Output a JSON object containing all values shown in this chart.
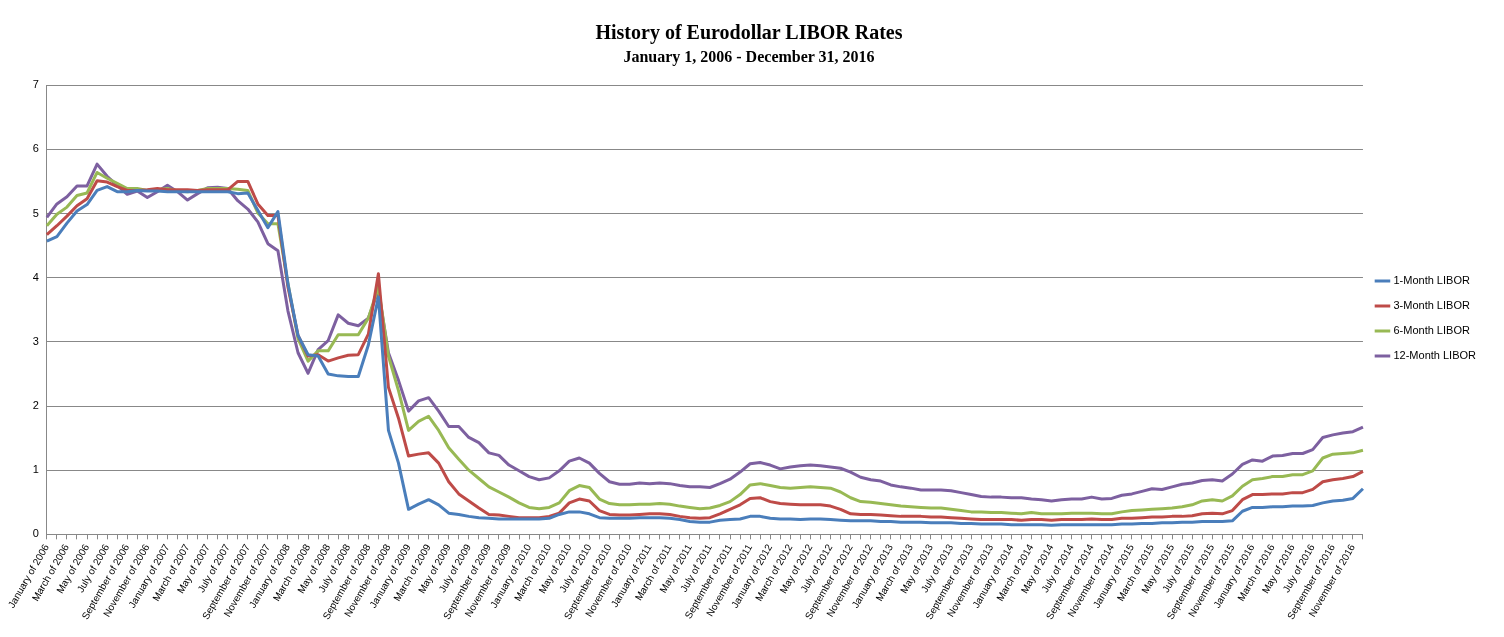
{
  "chart_data": {
    "type": "line",
    "title": "History of Eurodollar LIBOR Rates",
    "subtitle": "January 1, 2006 - December 31, 2016",
    "categories": [
      "January of 2006",
      null,
      "March of 2006",
      null,
      "May of 2006",
      null,
      "July of 2006",
      null,
      "September of 2006",
      null,
      "November of 2006",
      null,
      "January of 2007",
      null,
      "March of 2007",
      null,
      "May of 2007",
      null,
      "July of 2007",
      null,
      "September of 2007",
      null,
      "November of 2007",
      null,
      "January of 2008",
      null,
      "March of 2008",
      null,
      "May of 2008",
      null,
      "July of 2008",
      null,
      "September of 2008",
      null,
      "November of 2008",
      null,
      "January of 2009",
      null,
      "March of 2009",
      null,
      "May of 2009",
      null,
      "July of 2009",
      null,
      "September of 2009",
      null,
      "November of 2009",
      null,
      "January of 2010",
      null,
      "March of 2010",
      null,
      "May of 2010",
      null,
      "July of 2010",
      null,
      "September of 2010",
      null,
      "November of 2010",
      null,
      "January of 2011",
      null,
      "March of 2011",
      null,
      "May of 2011",
      null,
      "July of 2011",
      null,
      "September of 2011",
      null,
      "November of 2011",
      null,
      "January of 2012",
      null,
      "March of 2012",
      null,
      "May of 2012",
      null,
      "July of 2012",
      null,
      "September of 2012",
      null,
      "November of 2012",
      null,
      "January of 2013",
      null,
      "March of 2013",
      null,
      "May of 2013",
      null,
      "July of 2013",
      null,
      "September of 2013",
      null,
      "November of 2013",
      null,
      "January of 2014",
      null,
      "March of 2014",
      null,
      "May of 2014",
      null,
      "July of 2014",
      null,
      "September of 2014",
      null,
      "November of 2014",
      null,
      "January of 2015",
      null,
      "March of 2015",
      null,
      "May of 2015",
      null,
      "July of 2015",
      null,
      "September of 2015",
      null,
      "November of 2015",
      null,
      "January of 2016",
      null,
      "March of 2016",
      null,
      "May of 2016",
      null,
      "July of 2016",
      null,
      "September of 2016",
      null,
      "November of 2016",
      null
    ],
    "series": [
      {
        "name": "1-Month LIBOR",
        "color": "#4a7ebb",
        "values": [
          4.57,
          4.64,
          4.85,
          5.04,
          5.14,
          5.36,
          5.42,
          5.34,
          5.34,
          5.36,
          5.35,
          5.35,
          5.34,
          5.34,
          5.34,
          5.34,
          5.34,
          5.34,
          5.34,
          5.31,
          5.32,
          5.05,
          4.78,
          5.03,
          3.9,
          3.1,
          2.8,
          2.78,
          2.5,
          2.47,
          2.46,
          2.46,
          2.95,
          3.7,
          1.62,
          1.11,
          0.39,
          0.47,
          0.54,
          0.46,
          0.33,
          0.31,
          0.28,
          0.26,
          0.25,
          0.24,
          0.24,
          0.24,
          0.24,
          0.24,
          0.25,
          0.31,
          0.35,
          0.35,
          0.32,
          0.26,
          0.25,
          0.25,
          0.25,
          0.26,
          0.26,
          0.26,
          0.25,
          0.23,
          0.2,
          0.19,
          0.19,
          0.22,
          0.23,
          0.24,
          0.28,
          0.28,
          0.25,
          0.24,
          0.24,
          0.23,
          0.24,
          0.24,
          0.23,
          0.22,
          0.21,
          0.21,
          0.21,
          0.2,
          0.2,
          0.19,
          0.19,
          0.19,
          0.18,
          0.18,
          0.18,
          0.17,
          0.17,
          0.16,
          0.16,
          0.16,
          0.15,
          0.15,
          0.15,
          0.15,
          0.14,
          0.15,
          0.15,
          0.15,
          0.15,
          0.15,
          0.15,
          0.16,
          0.16,
          0.17,
          0.17,
          0.18,
          0.18,
          0.19,
          0.19,
          0.2,
          0.2,
          0.2,
          0.21,
          0.36,
          0.42,
          0.42,
          0.43,
          0.43,
          0.44,
          0.44,
          0.45,
          0.49,
          0.52,
          0.53,
          0.56,
          0.71
        ]
      },
      {
        "name": "3-Month LIBOR",
        "color": "#be4b48",
        "values": [
          4.67,
          4.81,
          4.96,
          5.12,
          5.23,
          5.51,
          5.49,
          5.42,
          5.36,
          5.36,
          5.37,
          5.39,
          5.37,
          5.37,
          5.37,
          5.36,
          5.37,
          5.37,
          5.37,
          5.5,
          5.5,
          5.15,
          4.97,
          4.97,
          3.85,
          3.1,
          2.78,
          2.8,
          2.7,
          2.75,
          2.79,
          2.8,
          3.12,
          4.06,
          2.29,
          1.81,
          1.22,
          1.25,
          1.27,
          1.11,
          0.82,
          0.63,
          0.52,
          0.41,
          0.31,
          0.3,
          0.28,
          0.26,
          0.26,
          0.26,
          0.28,
          0.33,
          0.49,
          0.55,
          0.52,
          0.37,
          0.31,
          0.3,
          0.3,
          0.31,
          0.32,
          0.32,
          0.31,
          0.28,
          0.26,
          0.25,
          0.26,
          0.32,
          0.39,
          0.46,
          0.56,
          0.57,
          0.51,
          0.48,
          0.47,
          0.46,
          0.46,
          0.46,
          0.44,
          0.39,
          0.32,
          0.31,
          0.31,
          0.3,
          0.29,
          0.28,
          0.28,
          0.28,
          0.27,
          0.27,
          0.26,
          0.25,
          0.24,
          0.23,
          0.23,
          0.23,
          0.23,
          0.22,
          0.23,
          0.23,
          0.22,
          0.23,
          0.23,
          0.23,
          0.24,
          0.23,
          0.23,
          0.25,
          0.25,
          0.26,
          0.27,
          0.27,
          0.28,
          0.28,
          0.29,
          0.32,
          0.33,
          0.32,
          0.37,
          0.54,
          0.62,
          0.62,
          0.63,
          0.63,
          0.65,
          0.65,
          0.7,
          0.82,
          0.85,
          0.87,
          0.9,
          0.98
        ]
      },
      {
        "name": "6-Month LIBOR",
        "color": "#98b954",
        "values": [
          4.81,
          4.99,
          5.1,
          5.28,
          5.32,
          5.64,
          5.55,
          5.47,
          5.39,
          5.39,
          5.36,
          5.37,
          5.39,
          5.35,
          5.34,
          5.36,
          5.39,
          5.39,
          5.39,
          5.38,
          5.36,
          5.01,
          4.84,
          4.84,
          3.91,
          3.05,
          2.7,
          2.86,
          2.86,
          3.11,
          3.11,
          3.11,
          3.37,
          3.86,
          2.78,
          2.24,
          1.62,
          1.76,
          1.84,
          1.62,
          1.35,
          1.17,
          1.0,
          0.87,
          0.74,
          0.66,
          0.58,
          0.49,
          0.42,
          0.4,
          0.42,
          0.49,
          0.68,
          0.76,
          0.73,
          0.55,
          0.48,
          0.46,
          0.46,
          0.47,
          0.47,
          0.48,
          0.47,
          0.44,
          0.42,
          0.4,
          0.41,
          0.45,
          0.51,
          0.62,
          0.77,
          0.79,
          0.76,
          0.73,
          0.72,
          0.73,
          0.74,
          0.73,
          0.72,
          0.66,
          0.57,
          0.51,
          0.5,
          0.48,
          0.46,
          0.44,
          0.43,
          0.42,
          0.41,
          0.41,
          0.39,
          0.37,
          0.35,
          0.35,
          0.34,
          0.34,
          0.33,
          0.32,
          0.34,
          0.32,
          0.32,
          0.32,
          0.33,
          0.33,
          0.33,
          0.32,
          0.32,
          0.35,
          0.37,
          0.38,
          0.39,
          0.4,
          0.41,
          0.43,
          0.46,
          0.52,
          0.54,
          0.52,
          0.6,
          0.75,
          0.85,
          0.87,
          0.9,
          0.9,
          0.93,
          0.93,
          0.99,
          1.19,
          1.25,
          1.26,
          1.27,
          1.31
        ]
      },
      {
        "name": "12-Month LIBOR",
        "color": "#7d60a0",
        "values": [
          4.94,
          5.15,
          5.26,
          5.43,
          5.43,
          5.77,
          5.58,
          5.44,
          5.3,
          5.35,
          5.25,
          5.34,
          5.44,
          5.34,
          5.21,
          5.31,
          5.4,
          5.41,
          5.39,
          5.2,
          5.07,
          4.87,
          4.53,
          4.42,
          3.48,
          2.83,
          2.51,
          2.88,
          3.02,
          3.42,
          3.29,
          3.25,
          3.37,
          3.8,
          2.83,
          2.4,
          1.92,
          2.08,
          2.13,
          1.92,
          1.68,
          1.68,
          1.51,
          1.43,
          1.27,
          1.23,
          1.08,
          0.99,
          0.9,
          0.85,
          0.88,
          0.99,
          1.14,
          1.19,
          1.11,
          0.95,
          0.82,
          0.78,
          0.78,
          0.8,
          0.79,
          0.8,
          0.79,
          0.76,
          0.74,
          0.74,
          0.73,
          0.79,
          0.86,
          0.97,
          1.1,
          1.12,
          1.08,
          1.02,
          1.05,
          1.07,
          1.08,
          1.07,
          1.05,
          1.03,
          0.97,
          0.89,
          0.85,
          0.83,
          0.77,
          0.74,
          0.72,
          0.69,
          0.69,
          0.69,
          0.68,
          0.65,
          0.62,
          0.59,
          0.58,
          0.58,
          0.57,
          0.57,
          0.55,
          0.54,
          0.52,
          0.54,
          0.55,
          0.55,
          0.58,
          0.55,
          0.56,
          0.61,
          0.63,
          0.67,
          0.71,
          0.7,
          0.74,
          0.78,
          0.8,
          0.84,
          0.85,
          0.83,
          0.94,
          1.09,
          1.16,
          1.14,
          1.22,
          1.23,
          1.26,
          1.26,
          1.32,
          1.51,
          1.55,
          1.58,
          1.6,
          1.67
        ]
      }
    ],
    "ylim": [
      0,
      7
    ],
    "yticks": [
      0,
      1,
      2,
      3,
      4,
      5,
      6,
      7
    ],
    "grid": "y",
    "legend": "right",
    "marker": "none",
    "line_style": "solid"
  }
}
